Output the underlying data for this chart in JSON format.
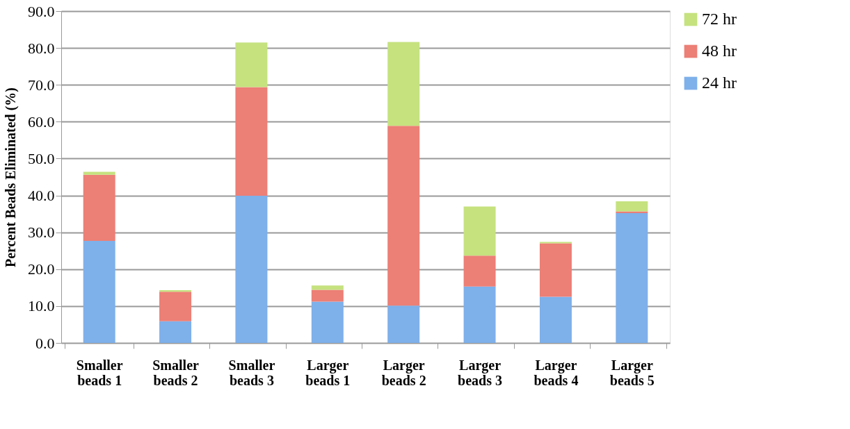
{
  "chart_data": {
    "type": "bar",
    "stacked": true,
    "ylabel": "Percent Beads Eliminated (%)",
    "categories": [
      "Smaller beads 1",
      "Smaller beads 2",
      "Smaller beads 3",
      "Larger beads 1",
      "Larger beads 2",
      "Larger beads 3",
      "Larger beads 4",
      "Larger beads 5"
    ],
    "series": [
      {
        "name": "24 hr",
        "color": "#7eb0ea",
        "values": [
          27.7,
          5.9,
          39.9,
          11.2,
          10.1,
          15.3,
          12.5,
          35.2
        ]
      },
      {
        "name": "48 hr",
        "color": "#ec7f76",
        "values": [
          17.9,
          8.0,
          29.5,
          3.2,
          48.8,
          8.4,
          14.5,
          0.5
        ]
      },
      {
        "name": "72 hr",
        "color": "#c5e27f",
        "values": [
          0.8,
          0.4,
          12.1,
          1.2,
          22.7,
          13.3,
          0.4,
          2.7
        ]
      }
    ],
    "ylim": [
      0,
      90
    ],
    "yticks": [
      {
        "value": 0,
        "label": "0.0"
      },
      {
        "value": 10,
        "label": "10.0"
      },
      {
        "value": 20,
        "label": "20.0"
      },
      {
        "value": 30,
        "label": "30.0"
      },
      {
        "value": 40,
        "label": "40.0"
      },
      {
        "value": 50,
        "label": "50.0"
      },
      {
        "value": 60,
        "label": "60.0"
      },
      {
        "value": 70,
        "label": "70.0"
      },
      {
        "value": 80,
        "label": "80.0"
      },
      {
        "value": 90,
        "label": "90.0"
      }
    ],
    "grid": "y",
    "legend": "right"
  }
}
